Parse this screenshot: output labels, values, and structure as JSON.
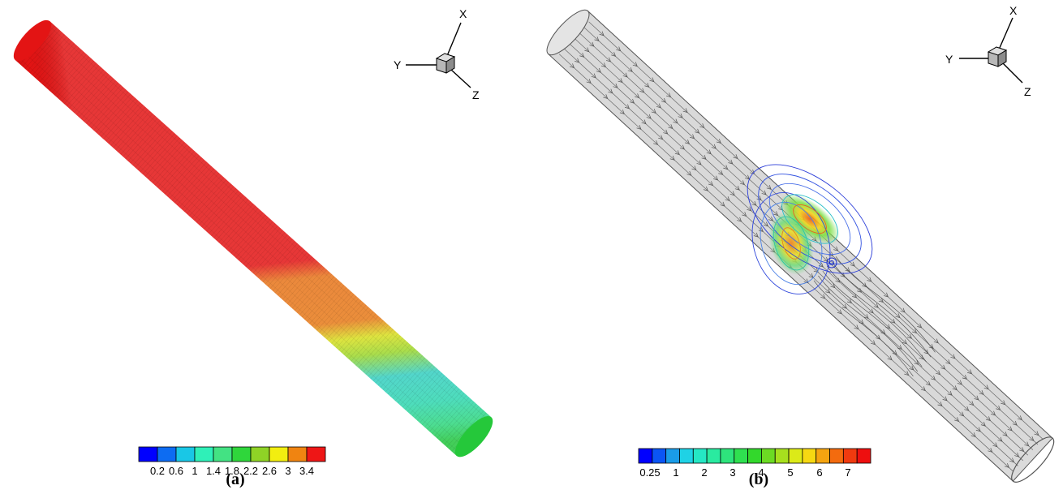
{
  "panel_a": {
    "caption": "(a)",
    "axis_triad": {
      "x": "X",
      "y": "Y",
      "z": "Z"
    },
    "colorbar": {
      "colors": [
        "#0000ff",
        "#0d6cf2",
        "#19c7e6",
        "#2ff0b8",
        "#43e283",
        "#2fd63b",
        "#8fd326",
        "#f2ee10",
        "#f08411",
        "#ee1616"
      ],
      "tick_labels": [
        "0.2",
        "0.6",
        "1",
        "1.4",
        "1.8",
        "2.2",
        "2.6",
        "3",
        "3.4"
      ]
    }
  },
  "panel_b": {
    "caption": "(b)",
    "axis_triad": {
      "x": "X",
      "y": "Y",
      "z": "Z"
    },
    "colorbar": {
      "colors": [
        "#0000ff",
        "#0b55f4",
        "#1a9ce8",
        "#1fd2e5",
        "#25e7c4",
        "#2aeaa0",
        "#2ee47c",
        "#2fe050",
        "#33d82c",
        "#6cdb23",
        "#a7e01e",
        "#dcea18",
        "#f6d812",
        "#f5a410",
        "#f36b0e",
        "#f03a0f",
        "#ee0f0f"
      ],
      "tick_labels": [
        "0.25",
        "1",
        "2",
        "3",
        "4",
        "5",
        "6",
        "7"
      ]
    }
  }
}
